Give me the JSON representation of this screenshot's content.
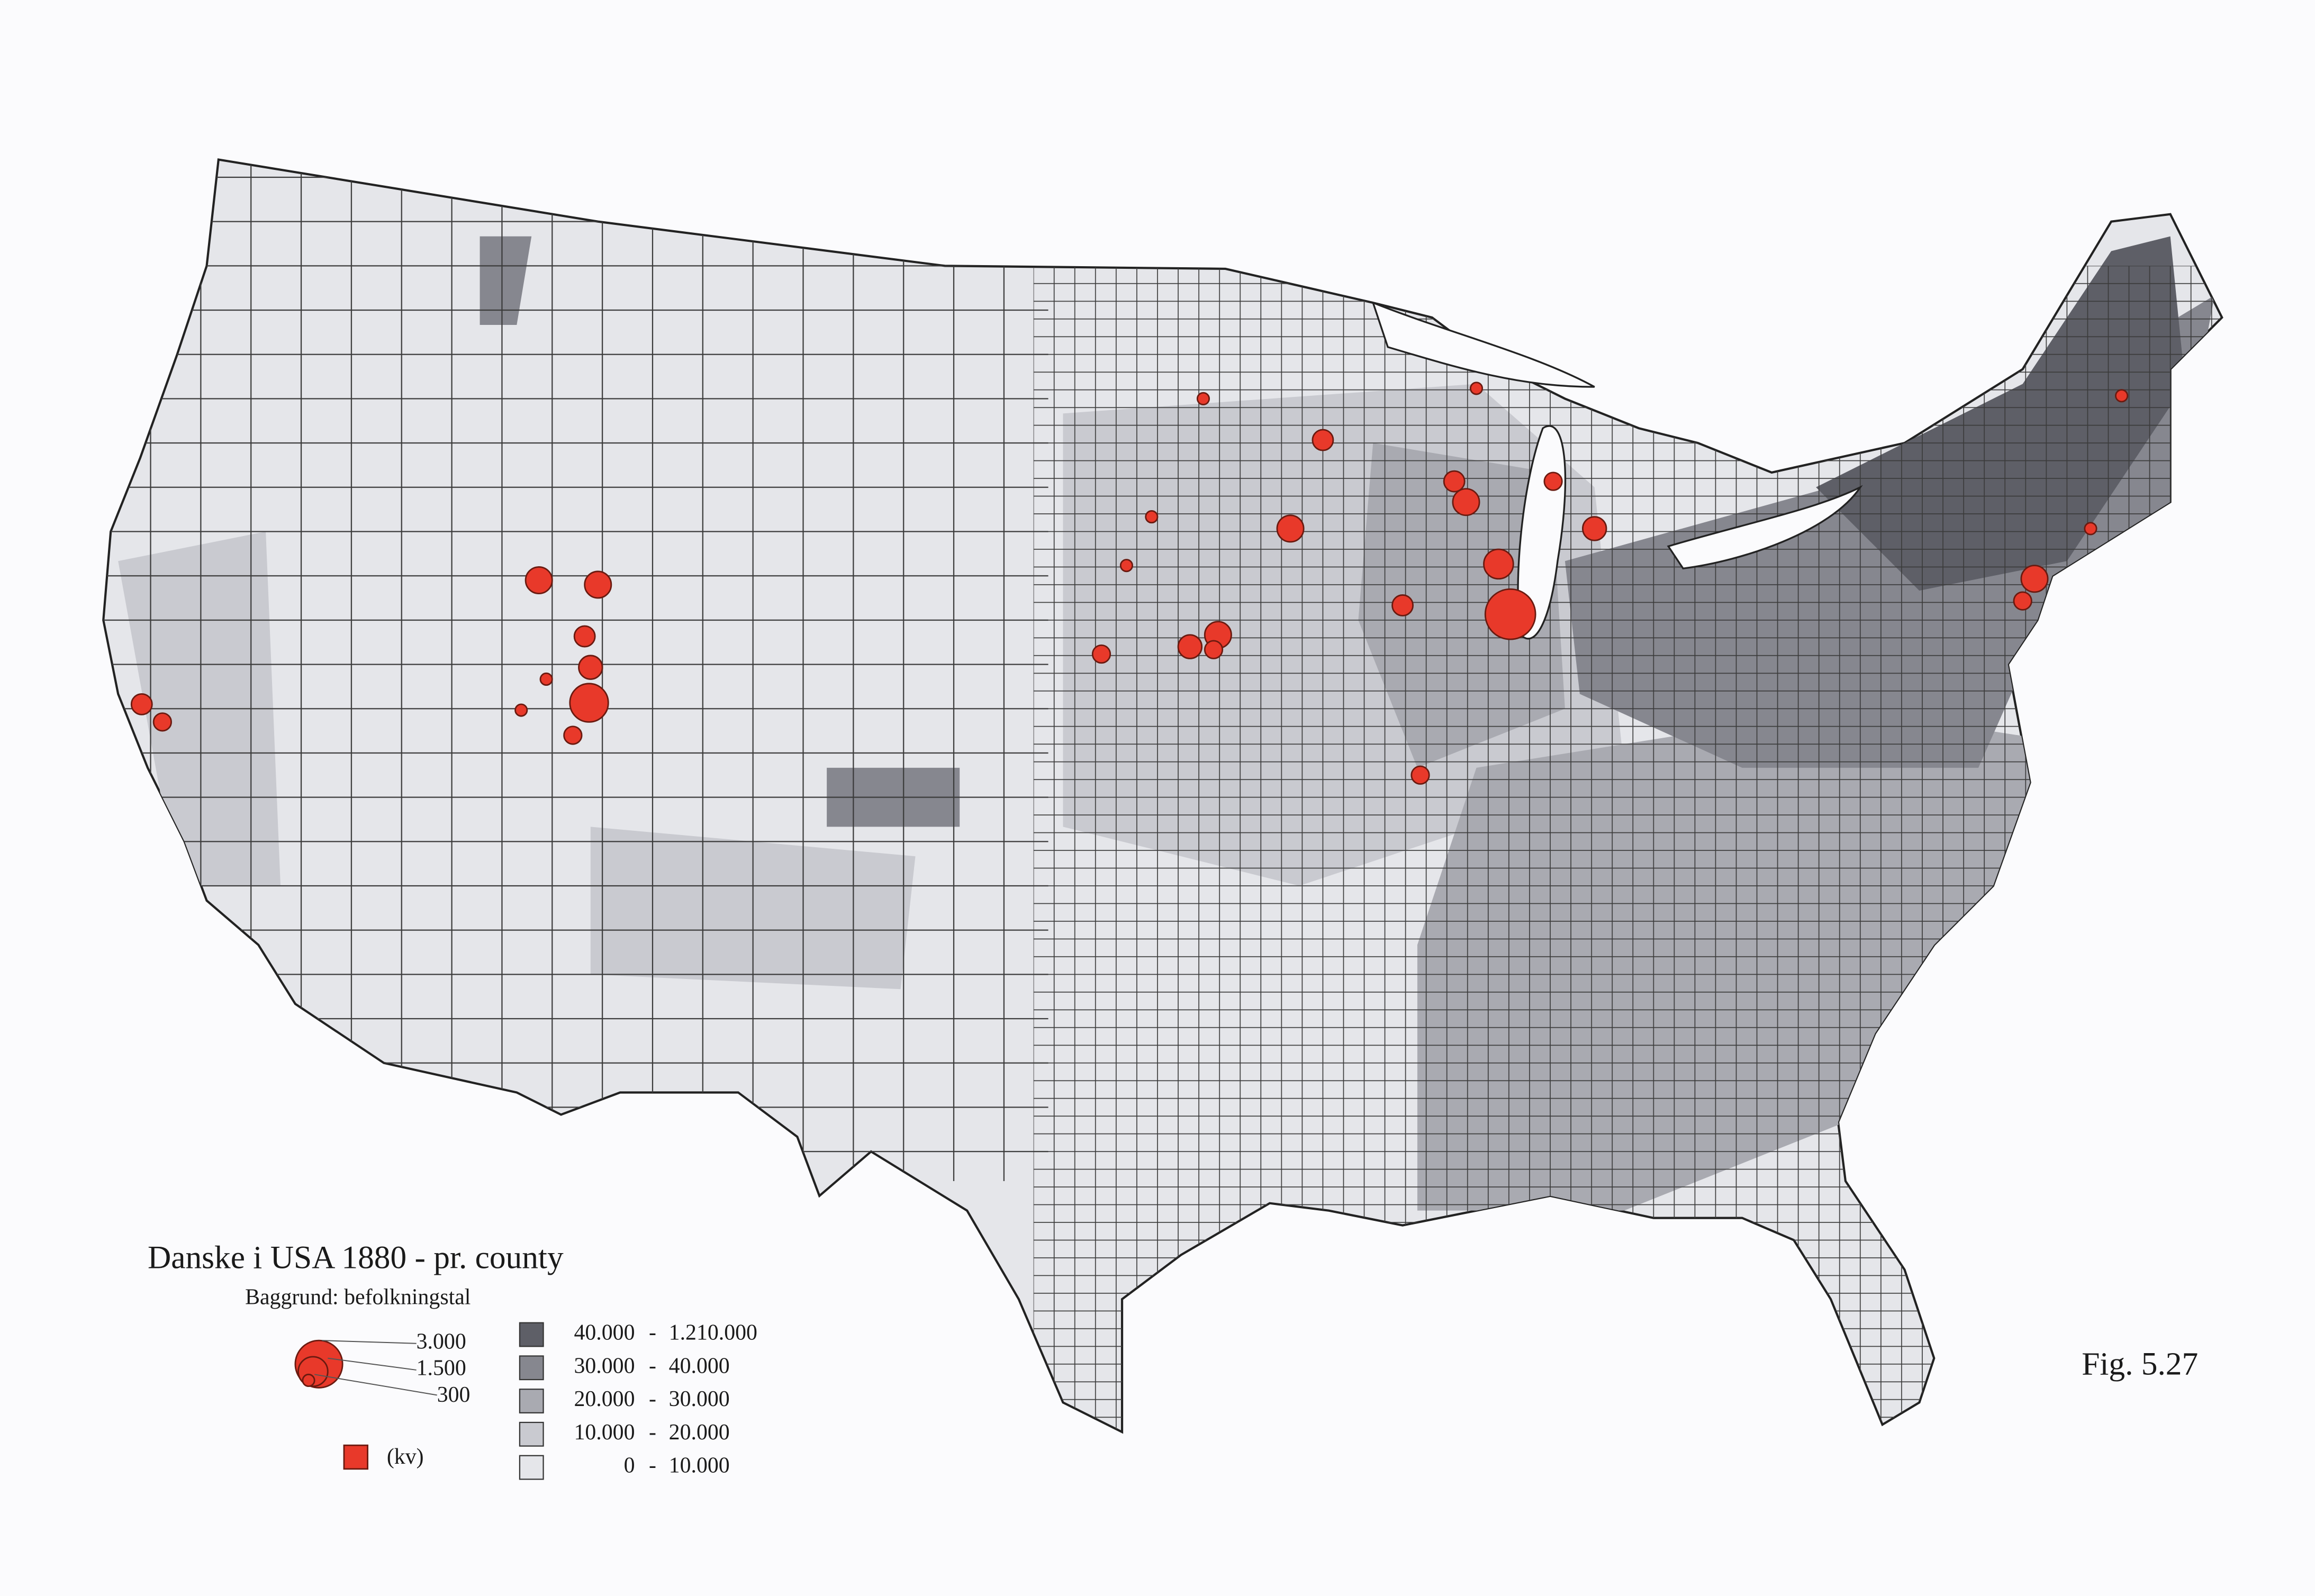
{
  "title": "Danske i USA 1880 - pr. county",
  "subtitle": "Baggrund: befolkningstal",
  "symbol_legend": {
    "labels": [
      "3.000",
      "1.500",
      "300"
    ],
    "women": "(kv)"
  },
  "class_legend": {
    "classes": [
      {
        "from": "40.000",
        "sep": "-",
        "to": "1.210.000",
        "color": "#5e5f67"
      },
      {
        "from": "30.000",
        "sep": "-",
        "to": "40.000",
        "color": "#86878f"
      },
      {
        "from": "20.000",
        "sep": "-",
        "to": "30.000",
        "color": "#a9aab1"
      },
      {
        "from": "10.000",
        "sep": "-",
        "to": "20.000",
        "color": "#c9cad0"
      },
      {
        "from": "0",
        "sep": "-",
        "to": "10.000",
        "color": "#e5e6ea"
      }
    ]
  },
  "figure": "Fig. 5.27"
}
